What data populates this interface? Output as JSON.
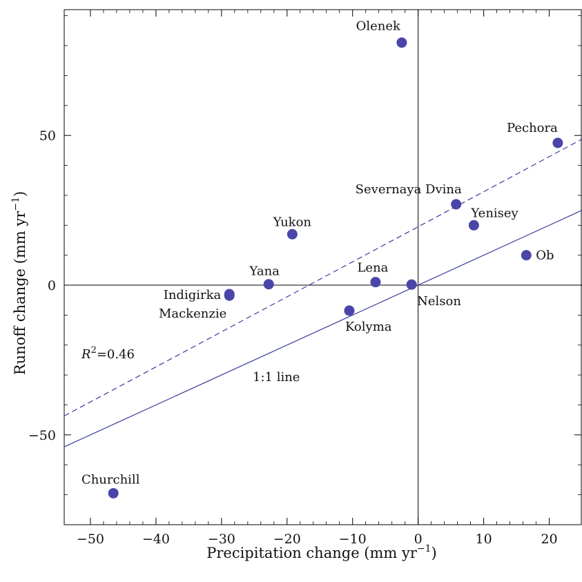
{
  "chart_data": {
    "type": "scatter",
    "xlabel": "Precipitation change (mm yr",
    "xlabel_sup": "−1",
    "xlabel_end": ")",
    "ylabel": "Runoff change (mm yr",
    "ylabel_sup": "−1",
    "ylabel_end": ")",
    "xlim": [
      -54,
      25
    ],
    "ylim": [
      -80,
      92
    ],
    "xticks": [
      -50,
      -40,
      -30,
      -20,
      -10,
      0,
      10,
      20
    ],
    "xtick_labels": [
      "−50",
      "−40",
      "−30",
      "−20",
      "−10",
      "0",
      "10",
      "20"
    ],
    "yticks": [
      -50,
      0,
      50
    ],
    "ytick_labels": [
      "−50",
      "0",
      "50"
    ],
    "grid": false,
    "points": [
      {
        "name": "Olenek",
        "x": -2.5,
        "y": 81
      },
      {
        "name": "Pechora",
        "x": 21.3,
        "y": 47.5
      },
      {
        "name": "Severnaya Dvina",
        "x": 5.8,
        "y": 27
      },
      {
        "name": "Yenisey",
        "x": 8.5,
        "y": 20
      },
      {
        "name": "Yukon",
        "x": -19.2,
        "y": 17
      },
      {
        "name": "Ob",
        "x": 16.5,
        "y": 10
      },
      {
        "name": "Yana",
        "x": -22.8,
        "y": 0.3
      },
      {
        "name": "Lena",
        "x": -6.5,
        "y": 1
      },
      {
        "name": "Nelson",
        "x": -1.0,
        "y": 0.2
      },
      {
        "name": "Indigirka",
        "x": -28.8,
        "y": -3
      },
      {
        "name": "Mackenzie",
        "x": -28.8,
        "y": -3.5
      },
      {
        "name": "Kolyma",
        "x": -10.5,
        "y": -8.5
      },
      {
        "name": "Churchill",
        "x": -46.5,
        "y": -69.5
      }
    ],
    "fit_line": {
      "style": "dashed",
      "slope": 1.17,
      "intercept": 19.5
    },
    "identity_line": {
      "style": "solid",
      "slope": 1,
      "intercept": 0,
      "label": "1:1 line"
    },
    "r2_label": {
      "prefix": "R",
      "sup": "2",
      "value": "=0.46"
    },
    "colors": {
      "points": "#4a45a8",
      "lines": "#3a3aa0",
      "axes": "#000000"
    }
  }
}
